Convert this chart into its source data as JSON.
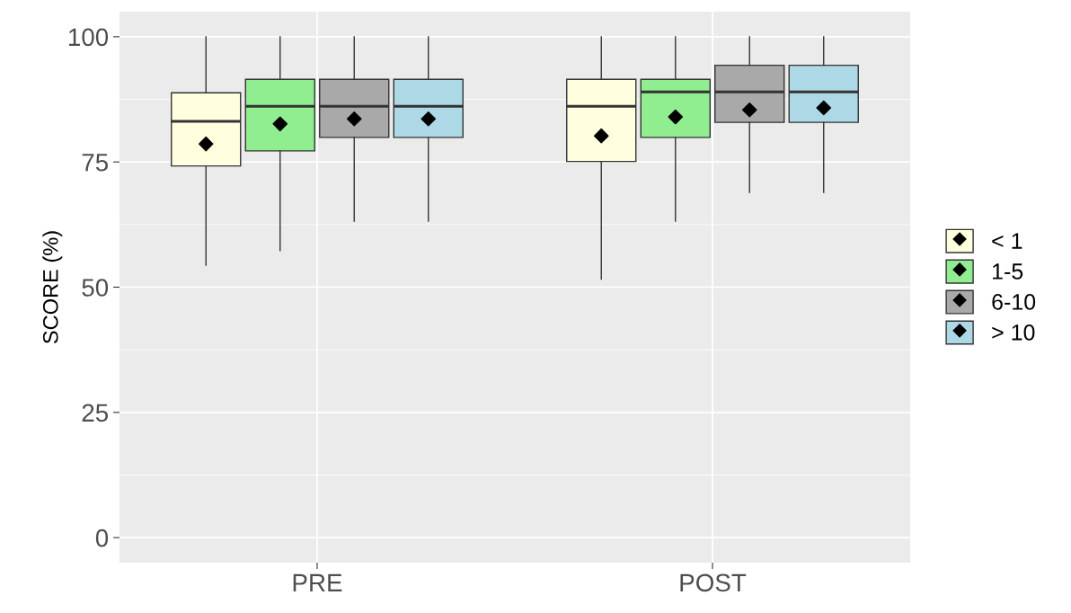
{
  "chart_data": {
    "type": "box",
    "ylabel": "SCORE (%)",
    "categories": [
      "PRE",
      "POST"
    ],
    "ylim": [
      -5,
      105
    ],
    "yticks": [
      0,
      25,
      50,
      75,
      100
    ],
    "grid": true,
    "legend": "right",
    "marker": "diamond",
    "series": [
      {
        "name": "< 1",
        "color": "#ffffe0",
        "boxes": [
          {
            "low": 54.4,
            "q1": 74.2,
            "median": 83.1,
            "q3": 88.8,
            "high": 100,
            "mean": 78.6
          },
          {
            "low": 51.6,
            "q1": 75.1,
            "median": 86.1,
            "q3": 91.5,
            "high": 100,
            "mean": 80.2
          }
        ]
      },
      {
        "name": "1-5",
        "color": "#90ee90",
        "boxes": [
          {
            "low": 57.3,
            "q1": 77.2,
            "median": 86.1,
            "q3": 91.5,
            "high": 100,
            "mean": 82.6
          },
          {
            "low": 63.2,
            "q1": 79.9,
            "median": 89.0,
            "q3": 91.5,
            "high": 100,
            "mean": 84.0
          }
        ]
      },
      {
        "name": "6-10",
        "color": "#a9a9a9",
        "boxes": [
          {
            "low": 63.2,
            "q1": 79.9,
            "median": 86.1,
            "q3": 91.5,
            "high": 100,
            "mean": 83.6
          },
          {
            "low": 68.9,
            "q1": 82.9,
            "median": 89.0,
            "q3": 94.3,
            "high": 100,
            "mean": 85.4
          }
        ]
      },
      {
        "name": "> 10",
        "color": "#add8e6",
        "boxes": [
          {
            "low": 63.2,
            "q1": 79.9,
            "median": 86.1,
            "q3": 91.5,
            "high": 100,
            "mean": 83.6
          },
          {
            "low": 68.9,
            "q1": 82.9,
            "median": 89.0,
            "q3": 94.3,
            "high": 100,
            "mean": 85.8
          }
        ]
      }
    ]
  }
}
